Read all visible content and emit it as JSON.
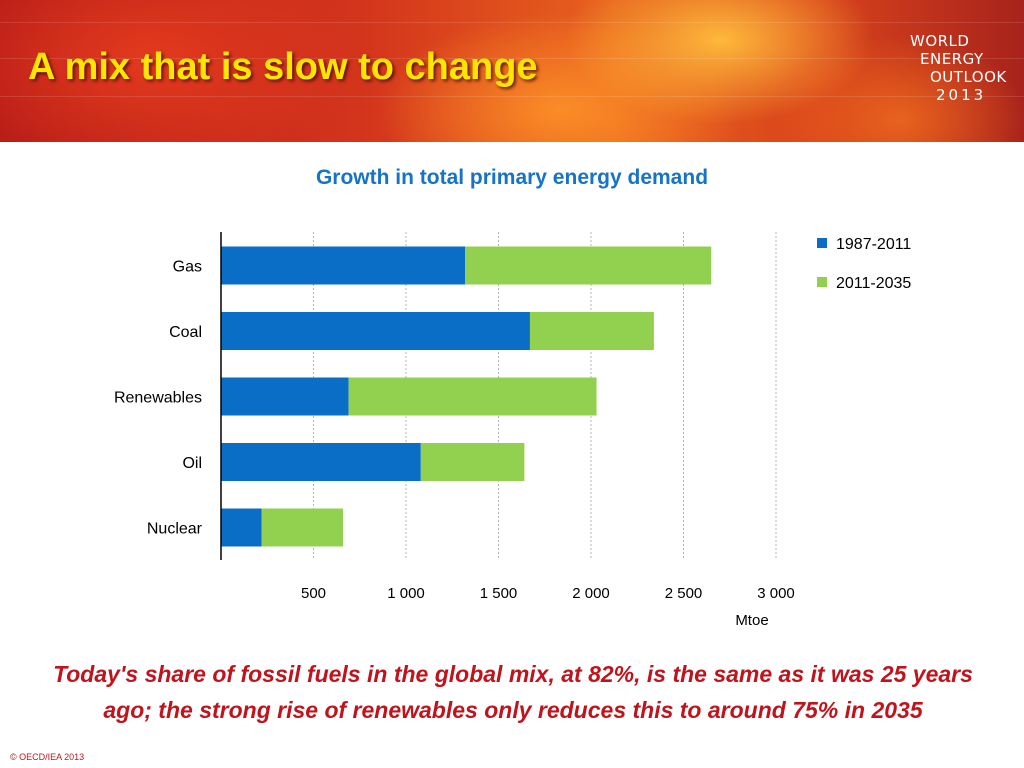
{
  "slide": {
    "title": "A mix that is slow to change",
    "logo_lines": [
      "WORLD",
      "ENERGY",
      "OUTLOOK",
      "2013"
    ],
    "footnote_line1": "Today's share of fossil fuels in the global mix, at 82%, is the same as it was 25 years",
    "footnote_line2": "ago; the strong rise of renewables only reduces this to around 75% in 2035",
    "copyright": "© OECD/IEA 2013"
  },
  "colors": {
    "title": "#ffe600",
    "chart_title": "#1673c8",
    "series_1": "#0a6ec6",
    "series_2": "#92d050",
    "footnote": "#c0141c"
  },
  "chart_data": {
    "type": "bar",
    "orientation": "horizontal",
    "stacked": true,
    "title": "Growth in total primary energy demand",
    "xlabel": "Mtoe",
    "categories": [
      "Gas",
      "Coal",
      "Renewables",
      "Oil",
      "Nuclear"
    ],
    "series": [
      {
        "name": "1987-2011",
        "values": [
          1320,
          1670,
          690,
          1080,
          220
        ]
      },
      {
        "name": "2011-2035",
        "values": [
          1330,
          670,
          1340,
          560,
          440
        ]
      }
    ],
    "xticks": [
      500,
      1000,
      1500,
      2000,
      2500,
      3000
    ],
    "xtick_labels": [
      "500",
      "1 000",
      "1 500",
      "2 000",
      "2 500",
      "3 000"
    ],
    "xlim": [
      0,
      3000
    ],
    "grid": "vertical dotted",
    "legend_position": "top-right"
  }
}
